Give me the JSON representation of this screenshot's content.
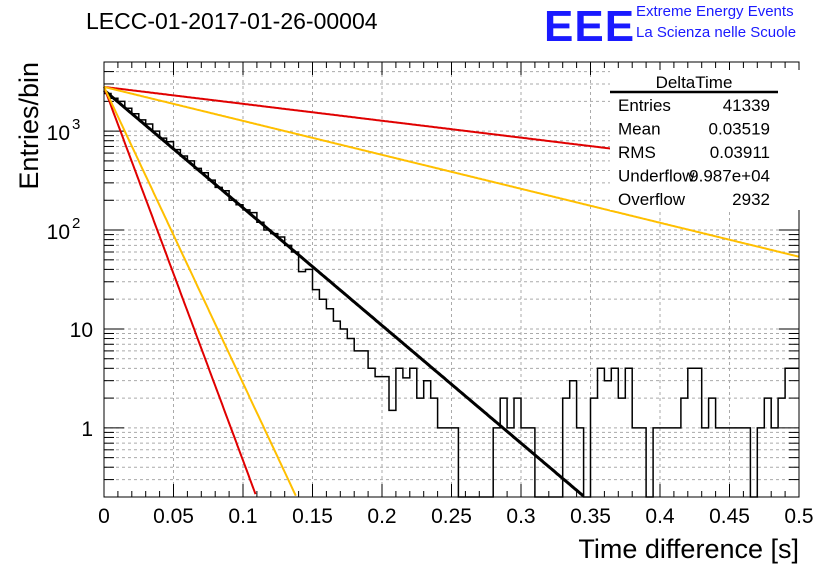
{
  "header": {
    "run_title": "LECC-01-2017-01-26-00004",
    "logo_text": "EEE",
    "logo_line1": "Extreme Energy Events",
    "logo_line2": "La Scienza nelle Scuole"
  },
  "stats_box": {
    "title": "DeltaTime",
    "rows": [
      {
        "label": "Entries",
        "value": "41339"
      },
      {
        "label": "Mean",
        "value": "0.03519"
      },
      {
        "label": "RMS",
        "value": "0.03911"
      },
      {
        "label": "Underflow",
        "value": "9.987e+04"
      },
      {
        "label": "Overflow",
        "value": "2932"
      }
    ]
  },
  "colors": {
    "red": "#e00000",
    "orange": "#ffbf00",
    "black": "#000000"
  },
  "chart_data": {
    "type": "line",
    "xlabel": "Time difference [s]",
    "ylabel": "Entries/bin",
    "xlim": [
      0,
      0.5
    ],
    "ylim": [
      0.2,
      5000
    ],
    "yscale": "log",
    "grid": true,
    "x_ticks": [
      "0",
      "0.05",
      "0.1",
      "0.15",
      "0.2",
      "0.25",
      "0.3",
      "0.35",
      "0.4",
      "0.45",
      "0.5"
    ],
    "y_ticks": [
      {
        "value": 1,
        "label": "1"
      },
      {
        "value": 10,
        "label": "10"
      },
      {
        "value": 100,
        "base": "10",
        "exp": "2"
      },
      {
        "value": 1000,
        "base": "10",
        "exp": "3"
      }
    ],
    "histogram": {
      "bin_width": 0.005,
      "values": [
        2400,
        2150,
        2000,
        1700,
        1500,
        1300,
        1180,
        1000,
        850,
        780,
        650,
        560,
        500,
        420,
        380,
        320,
        270,
        250,
        200,
        180,
        160,
        150,
        120,
        100,
        92,
        85,
        70,
        60,
        38,
        40,
        25,
        20,
        16,
        12,
        10,
        8,
        6,
        6,
        4,
        3.3,
        3.3,
        1.5,
        4,
        3.2,
        4,
        2,
        3,
        2,
        1,
        1,
        1,
        0,
        0,
        0,
        0,
        0,
        1,
        2,
        1,
        2,
        1,
        1,
        0,
        0,
        0,
        0,
        2,
        3,
        1,
        0,
        2,
        4,
        3,
        4,
        2,
        4,
        1,
        1,
        0,
        1,
        1,
        1,
        1,
        2,
        4,
        4,
        1,
        2,
        1,
        1,
        1,
        1,
        1,
        0,
        1,
        2,
        1,
        2,
        4,
        4
      ]
    },
    "curves": [
      {
        "color": "black",
        "A": 2600,
        "tau": 0.0365
      },
      {
        "color": "red",
        "A": 2800,
        "tau": 0.0115
      },
      {
        "color": "orange",
        "A": 2800,
        "tau": 0.0145
      },
      {
        "color": "red",
        "A": 2800,
        "tau": 0.254
      },
      {
        "color": "orange",
        "A": 2800,
        "tau": 0.1265
      }
    ]
  }
}
